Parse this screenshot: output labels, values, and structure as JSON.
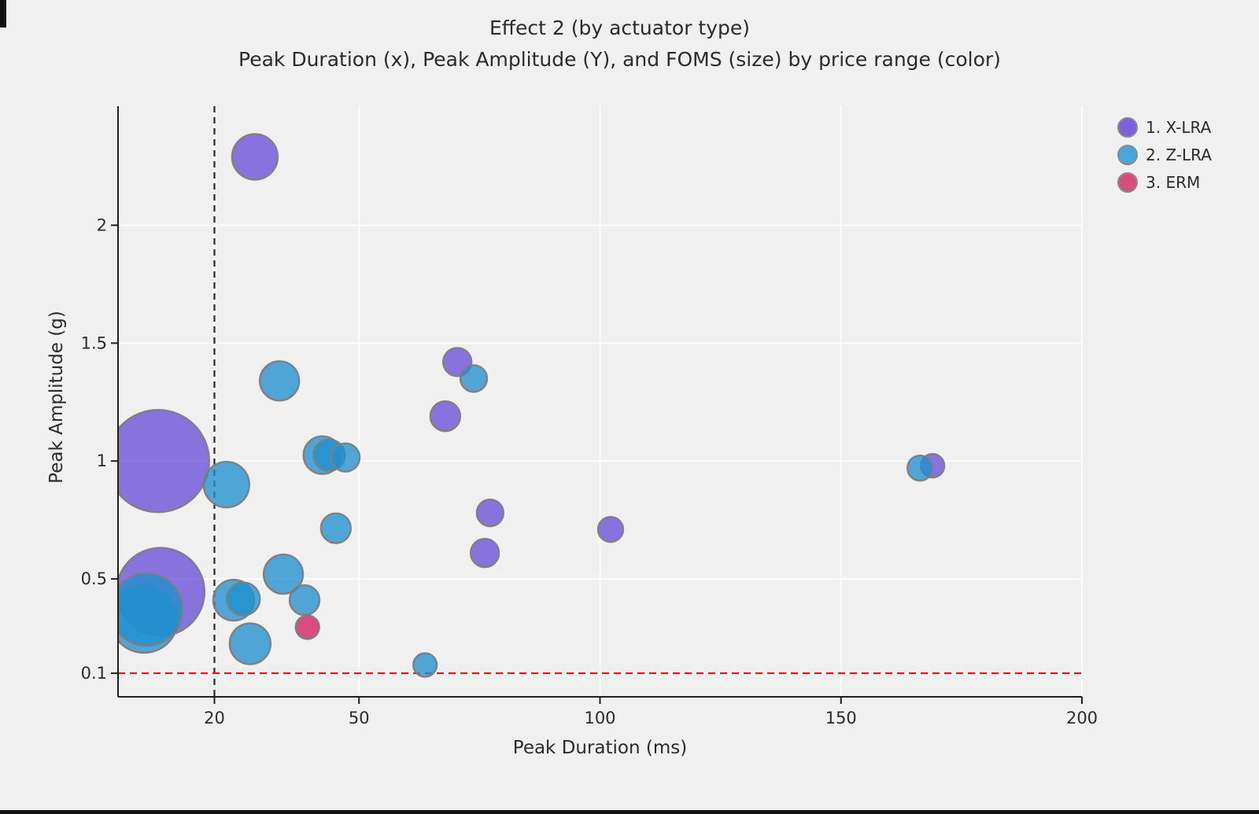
{
  "chart_data": {
    "type": "bubble",
    "title": "Effect 2 (by actuator type)",
    "subtitle": "Peak Duration (x), Peak Amplitude (Y), and FOMS (size) by price range (color)",
    "xlabel": "Peak Duration (ms)",
    "ylabel": "Peak Amplitude (g)",
    "xlim": [
      0,
      200
    ],
    "ylim": [
      0,
      2.505
    ],
    "x_ticks": [
      20,
      50,
      100,
      150,
      200
    ],
    "y_ticks": [
      0.1,
      0.5,
      1,
      1.5,
      2
    ],
    "x_tick_labels": [
      "20",
      "50",
      "100",
      "150",
      "200"
    ],
    "y_tick_labels": [
      "0.1",
      "0.5",
      "1",
      "1.5",
      "2"
    ],
    "grid": true,
    "grid_color": "#ffffff",
    "background_color": "#f0f0f0",
    "spine_color": "#1f1f1f",
    "bubble_stroke_color": "#7d7d7d",
    "bubble_fill_opacity": 0.78,
    "legend_position": "upper-right-outside",
    "ref_lines": {
      "vline": {
        "x": 20,
        "color": "#2a2a2a",
        "style": "dashed"
      },
      "hline": {
        "y": 0.1,
        "color": "#e3191c",
        "style": "dashed"
      }
    },
    "size_legend_note": "FOMS (size)",
    "series": [
      {
        "name": "1. X-LRA",
        "fill": "#6A4FD8",
        "legend_color": "#7e60de",
        "points": [
          {
            "x": 28.4,
            "y": 2.29,
            "r": 29
          },
          {
            "x": 70.4,
            "y": 1.42,
            "r": 18
          },
          {
            "x": 67.9,
            "y": 1.19,
            "r": 19
          },
          {
            "x": 8.3,
            "y": 1.0,
            "r": 65
          },
          {
            "x": 77.2,
            "y": 0.78,
            "r": 17
          },
          {
            "x": 76.1,
            "y": 0.61,
            "r": 18
          },
          {
            "x": 102.2,
            "y": 0.71,
            "r": 16
          },
          {
            "x": 169.0,
            "y": 0.98,
            "r": 15
          },
          {
            "x": 8.8,
            "y": 0.445,
            "r": 56
          }
        ]
      },
      {
        "name": "2. Z-LRA",
        "fill": "#2090CE",
        "legend_color": "#49a6da",
        "points": [
          {
            "x": 33.5,
            "y": 1.34,
            "r": 25
          },
          {
            "x": 73.8,
            "y": 1.35,
            "r": 17
          },
          {
            "x": 42.4,
            "y": 1.025,
            "r": 24
          },
          {
            "x": 43.8,
            "y": 1.025,
            "r": 20
          },
          {
            "x": 47.2,
            "y": 1.015,
            "r": 18
          },
          {
            "x": 22.5,
            "y": 0.9,
            "r": 29
          },
          {
            "x": 45.2,
            "y": 0.715,
            "r": 19
          },
          {
            "x": 166.4,
            "y": 0.97,
            "r": 16
          },
          {
            "x": 34.3,
            "y": 0.52,
            "r": 25
          },
          {
            "x": 5.4,
            "y": 0.33,
            "r": 43
          },
          {
            "x": 5.9,
            "y": 0.37,
            "r": 46
          },
          {
            "x": 24.0,
            "y": 0.41,
            "r": 26
          },
          {
            "x": 26.0,
            "y": 0.415,
            "r": 21
          },
          {
            "x": 38.7,
            "y": 0.41,
            "r": 19
          },
          {
            "x": 27.4,
            "y": 0.225,
            "r": 26
          },
          {
            "x": 63.7,
            "y": 0.135,
            "r": 15
          }
        ]
      },
      {
        "name": "3. ERM",
        "fill": "#D31D5F",
        "legend_color": "#d74e7d",
        "points": [
          {
            "x": 39.3,
            "y": 0.295,
            "r": 15
          }
        ]
      }
    ]
  }
}
